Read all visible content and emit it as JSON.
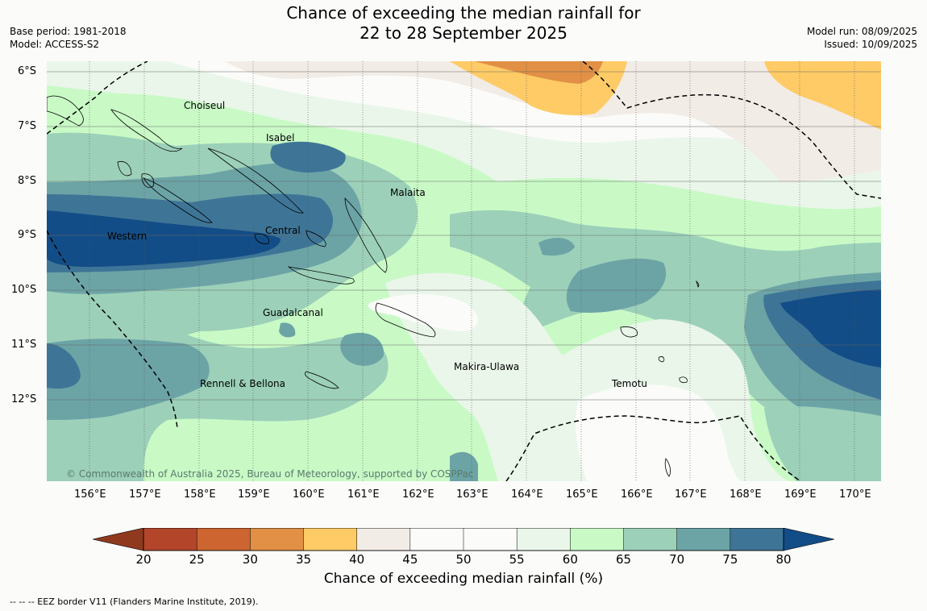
{
  "title": {
    "line1": "Chance of exceeding the median rainfall for",
    "line2": "22 to 28 September 2025"
  },
  "meta_left": {
    "base_period": "Base period: 1981-2018",
    "model": "Model: ACCESS-S2"
  },
  "meta_right": {
    "model_run": "Model run: 08/09/2025",
    "issued": "Issued: 10/09/2025"
  },
  "map": {
    "lat_labels": [
      "6°S",
      "7°S",
      "8°S",
      "9°S",
      "10°S",
      "11°S",
      "12°S"
    ],
    "lon_labels": [
      "156°E",
      "157°E",
      "158°E",
      "159°E",
      "160°E",
      "161°E",
      "162°E",
      "163°E",
      "164°E",
      "165°E",
      "166°E",
      "167°E",
      "168°E",
      "169°E",
      "170°E"
    ],
    "regions": [
      "Choiseul",
      "Isabel",
      "Malaita",
      "Western",
      "Central",
      "Guadalcanal",
      "Makira-Ulawa",
      "Rennell & Bellona",
      "Temotu"
    ],
    "copyright": "© Commonwealth of Australia 2025, Bureau of Meteorology, supported by COSPPac"
  },
  "colorbar": {
    "ticks": [
      "20",
      "25",
      "30",
      "35",
      "40",
      "45",
      "50",
      "55",
      "60",
      "65",
      "70",
      "75",
      "80"
    ],
    "colors": [
      "#8f3a1f",
      "#b2452a",
      "#cc6530",
      "#e19045",
      "#fecb66",
      "#f2ece6",
      "#fbfcfa",
      "#fbfcfa",
      "#eaf6ea",
      "#c9fac6",
      "#9cd0b9",
      "#6ca4a6",
      "#3e7597",
      "#134d87"
    ],
    "title": "Chance of exceeding median rainfall (%)"
  },
  "footnote": "--  --  -- EEZ border V11 (Flanders Marine Institute, 2019)."
}
